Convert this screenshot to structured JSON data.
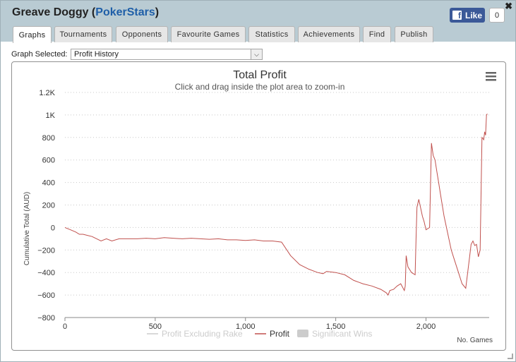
{
  "window": {
    "title_name": "Greave Doggy",
    "title_open": " (",
    "title_site": "PokerStars",
    "title_close": ")",
    "close_glyph": "✖"
  },
  "facebook": {
    "like_label": "Like",
    "count": "0",
    "icon": "facebook-f-icon",
    "color": "#3b5998"
  },
  "tabs": [
    {
      "label": "Graphs",
      "active": true
    },
    {
      "label": "Tournaments",
      "active": false
    },
    {
      "label": "Opponents",
      "active": false
    },
    {
      "label": "Favourite Games",
      "active": false
    },
    {
      "label": "Statistics",
      "active": false
    },
    {
      "label": "Achievements",
      "active": false
    },
    {
      "label": "Find",
      "active": false
    },
    {
      "label": "Publish",
      "active": false
    }
  ],
  "graph_select": {
    "label": "Graph Selected:",
    "value": "Profit History"
  },
  "chart_data": {
    "type": "line",
    "title": "Total Profit",
    "subtitle": "Click and drag inside the plot area to zoom-in",
    "ylabel": "Cumulative Total (AUD)",
    "xlabel": "No. Games",
    "ylim": [
      -800,
      1200
    ],
    "xlim": [
      0,
      2350
    ],
    "y_ticks": [
      "1.2K",
      "1K",
      "800",
      "600",
      "400",
      "200",
      "0",
      "−200",
      "−400",
      "−600",
      "−800"
    ],
    "y_tick_values": [
      1200,
      1000,
      800,
      600,
      400,
      200,
      0,
      -200,
      -400,
      -600,
      -800
    ],
    "x_ticks": [
      "0",
      "500",
      "1,000",
      "1,500",
      "2,000"
    ],
    "x_tick_values": [
      0,
      500,
      1000,
      1500,
      2000
    ],
    "grid": true,
    "legend_position": "bottom-center",
    "legend": [
      {
        "name": "Profit Excluding Rake",
        "enabled": false
      },
      {
        "name": "Profit",
        "enabled": true
      },
      {
        "name": "Significant Wins",
        "enabled": false
      }
    ],
    "colors": {
      "profit": "#c0504d",
      "disabled": "#cccccc"
    },
    "series": [
      {
        "name": "Profit",
        "x": [
          0,
          30,
          60,
          80,
          100,
          150,
          200,
          230,
          260,
          300,
          350,
          400,
          450,
          500,
          550,
          600,
          650,
          700,
          750,
          800,
          850,
          900,
          950,
          1000,
          1050,
          1100,
          1150,
          1200,
          1250,
          1300,
          1350,
          1400,
          1430,
          1450,
          1500,
          1550,
          1600,
          1650,
          1700,
          1750,
          1780,
          1790,
          1800,
          1820,
          1840,
          1860,
          1880,
          1885,
          1890,
          1900,
          1920,
          1940,
          1945,
          1950,
          1960,
          1980,
          1990,
          2000,
          2020,
          2030,
          2040,
          2050,
          2060,
          2070,
          2080,
          2100,
          2120,
          2140,
          2160,
          2180,
          2200,
          2220,
          2240,
          2250,
          2260,
          2270,
          2280,
          2290,
          2300,
          2310,
          2320,
          2325,
          2330,
          2335,
          2340
        ],
        "values": [
          0,
          -20,
          -40,
          -60,
          -60,
          -80,
          -120,
          -100,
          -120,
          -100,
          -100,
          -100,
          -95,
          -100,
          -90,
          -95,
          -100,
          -95,
          -100,
          -105,
          -100,
          -110,
          -110,
          -115,
          -110,
          -120,
          -120,
          -130,
          -250,
          -330,
          -370,
          -400,
          -410,
          -390,
          -400,
          -420,
          -470,
          -500,
          -520,
          -550,
          -580,
          -600,
          -560,
          -550,
          -520,
          -500,
          -560,
          -520,
          -250,
          -350,
          -400,
          -420,
          -100,
          180,
          250,
          100,
          50,
          -20,
          0,
          750,
          640,
          600,
          500,
          400,
          300,
          100,
          -50,
          -200,
          -300,
          -400,
          -500,
          -540,
          -280,
          -150,
          -120,
          -160,
          -150,
          -260,
          -200,
          800,
          780,
          850,
          820,
          1000,
          1010
        ]
      }
    ]
  }
}
